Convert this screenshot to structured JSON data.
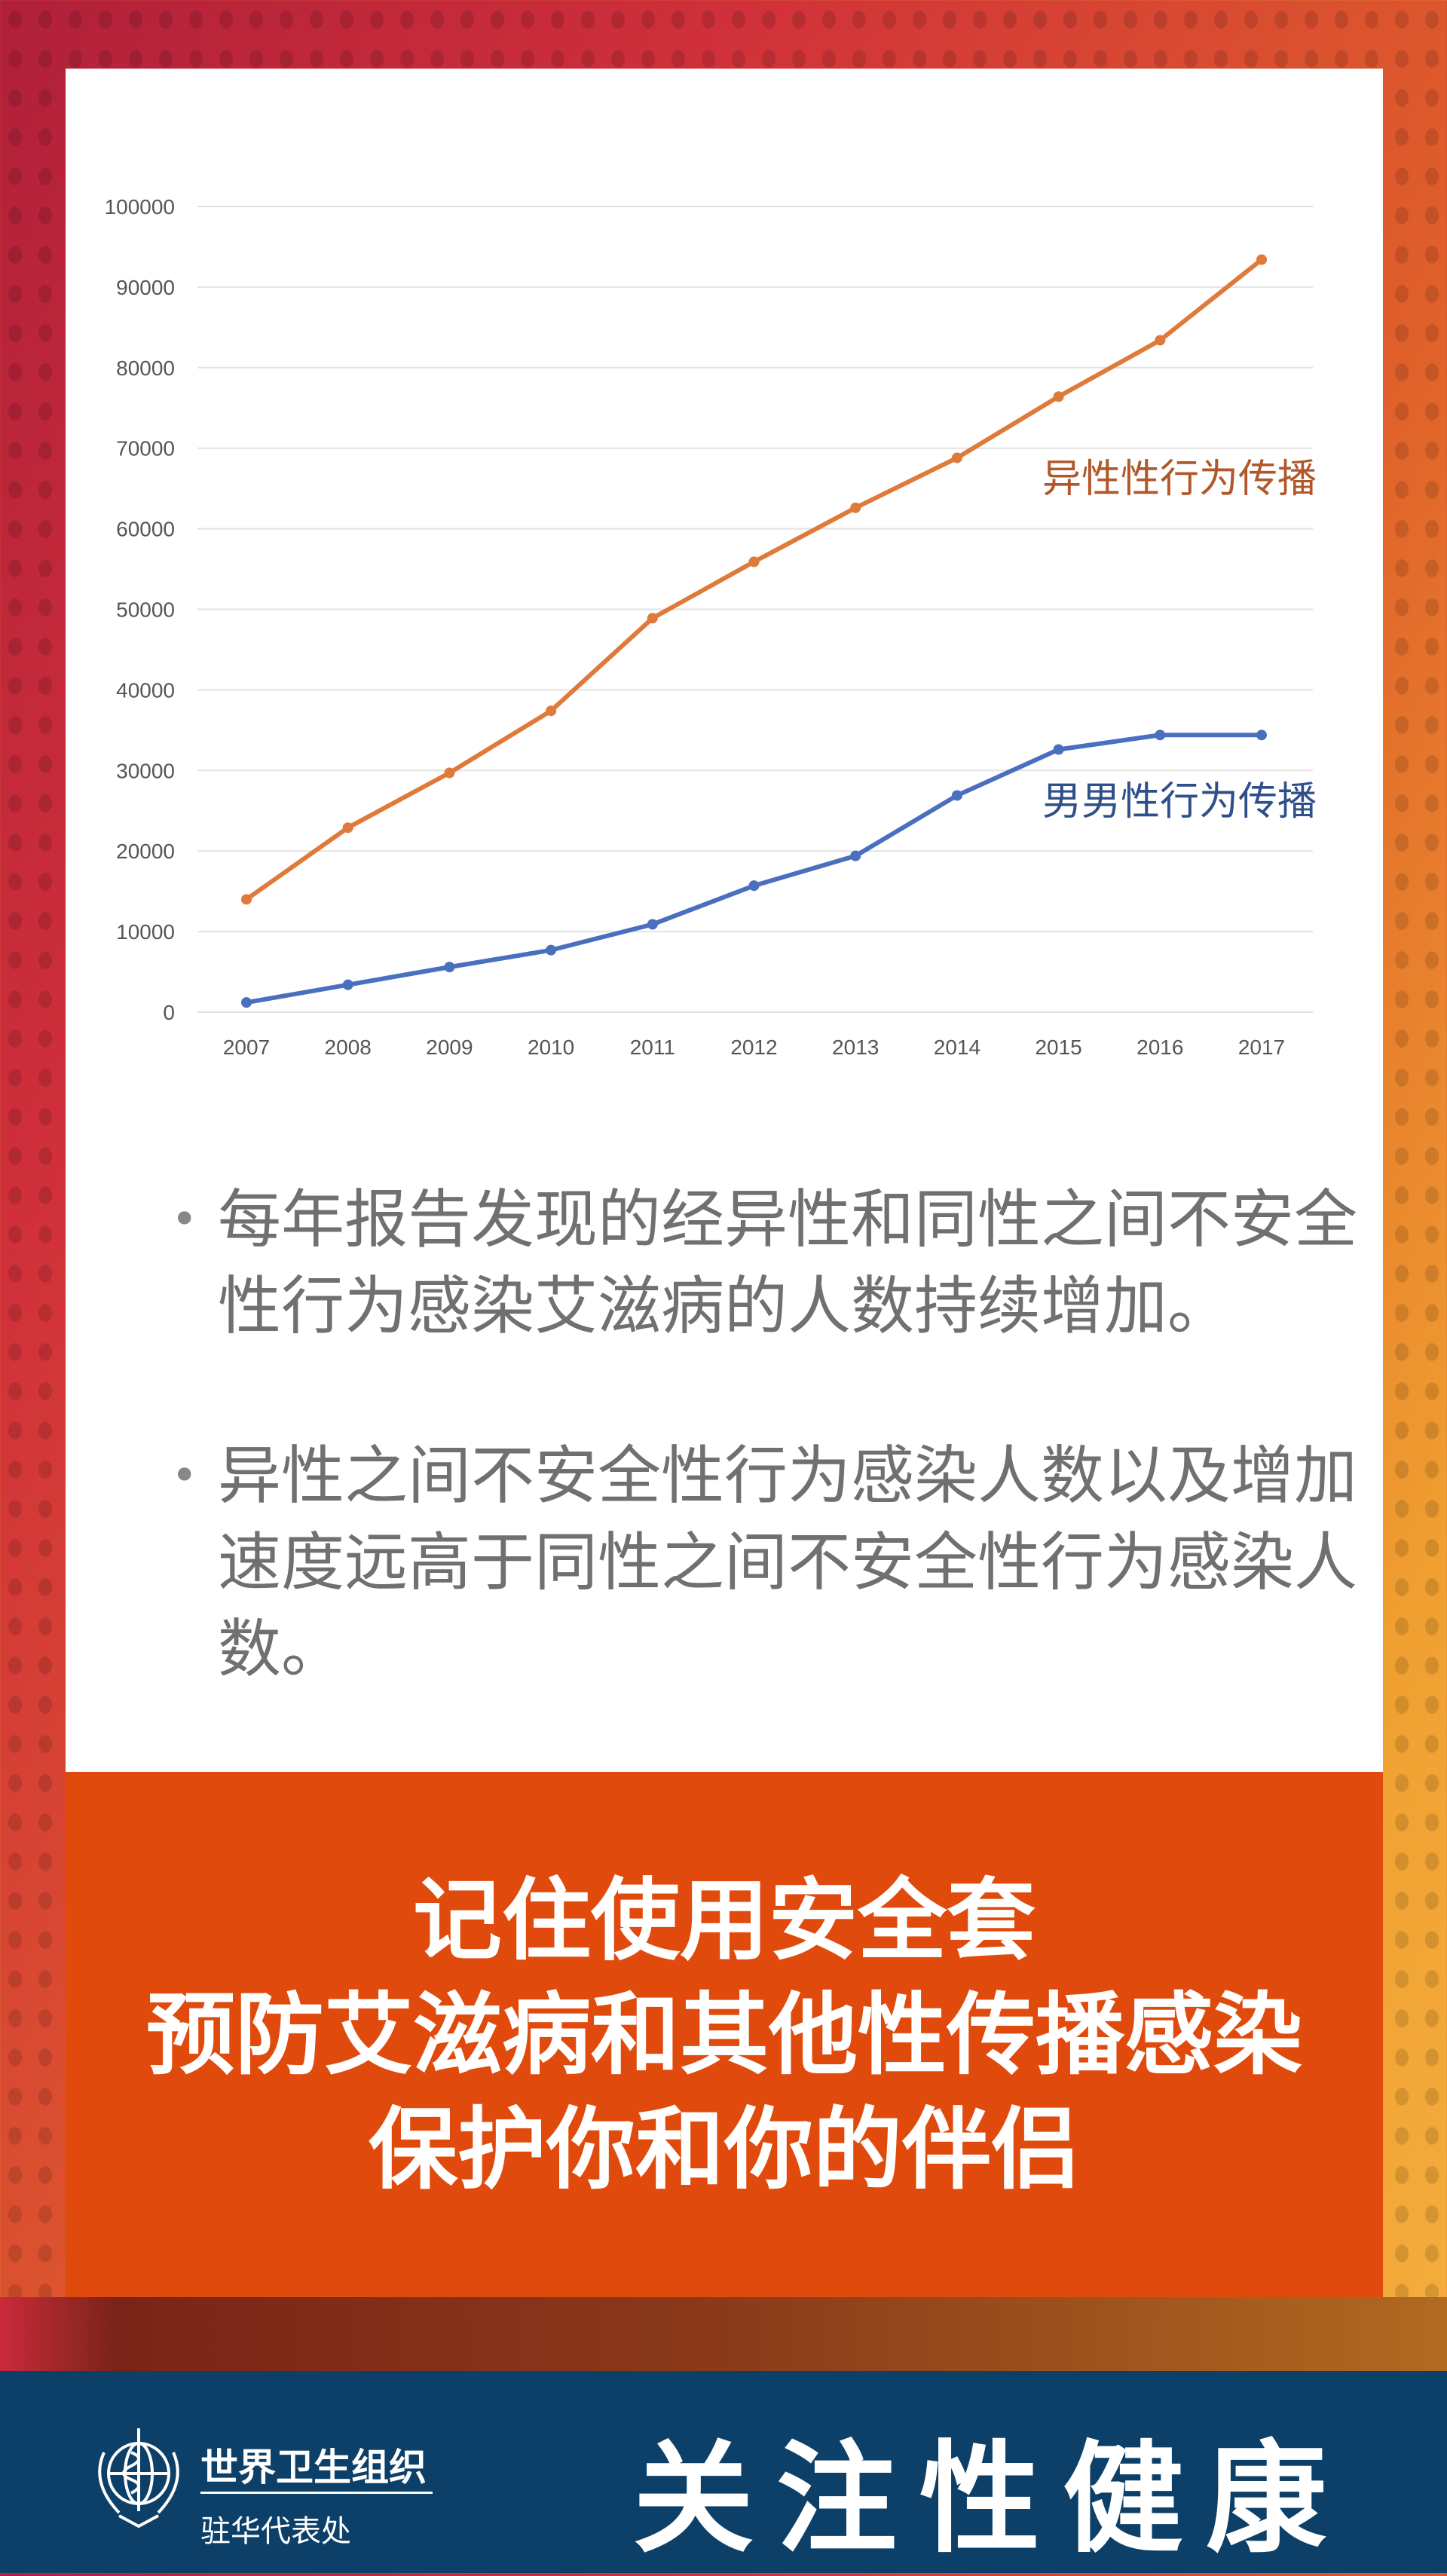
{
  "chart_data": {
    "type": "line",
    "categories": [
      "2007",
      "2008",
      "2009",
      "2010",
      "2011",
      "2012",
      "2013",
      "2014",
      "2015",
      "2016",
      "2017"
    ],
    "yticks": [
      "0",
      "10000",
      "20000",
      "30000",
      "40000",
      "50000",
      "60000",
      "70000",
      "80000",
      "90000",
      "100000"
    ],
    "ylim": [
      0,
      100000
    ],
    "grid": true,
    "series": [
      {
        "name": "异性性行为传播",
        "color": "#e07a3a",
        "label_color": "#b0582a",
        "values": [
          14000,
          22900,
          29700,
          37400,
          48900,
          55900,
          62600,
          68800,
          76400,
          83400,
          93400
        ]
      },
      {
        "name": "男男性行为传播",
        "color": "#4a6fbf",
        "label_color": "#2f4f8a",
        "values": [
          1200,
          3400,
          5600,
          7700,
          10900,
          15700,
          19400,
          26900,
          32600,
          34400,
          34400
        ]
      }
    ]
  },
  "bullets": [
    "每年报告发现的经异性和同性之间不安全性行为感染艾滋病的人数持续增加。",
    "异性之间不安全性行为感染人数以及增加速度远高于同性之间不安全性行为感染人数。"
  ],
  "banner": {
    "lines": [
      "记住使用安全套",
      "预防艾滋病和其他性传播感染",
      "保护你和你的伴侣"
    ],
    "color": "#e04a0c"
  },
  "footer": {
    "org_name": "世界卫生组织",
    "org_sub": "驻华代表处",
    "slogan": "关注性健康",
    "logo_icon": "who-emblem-icon",
    "color": "#0d4068"
  }
}
